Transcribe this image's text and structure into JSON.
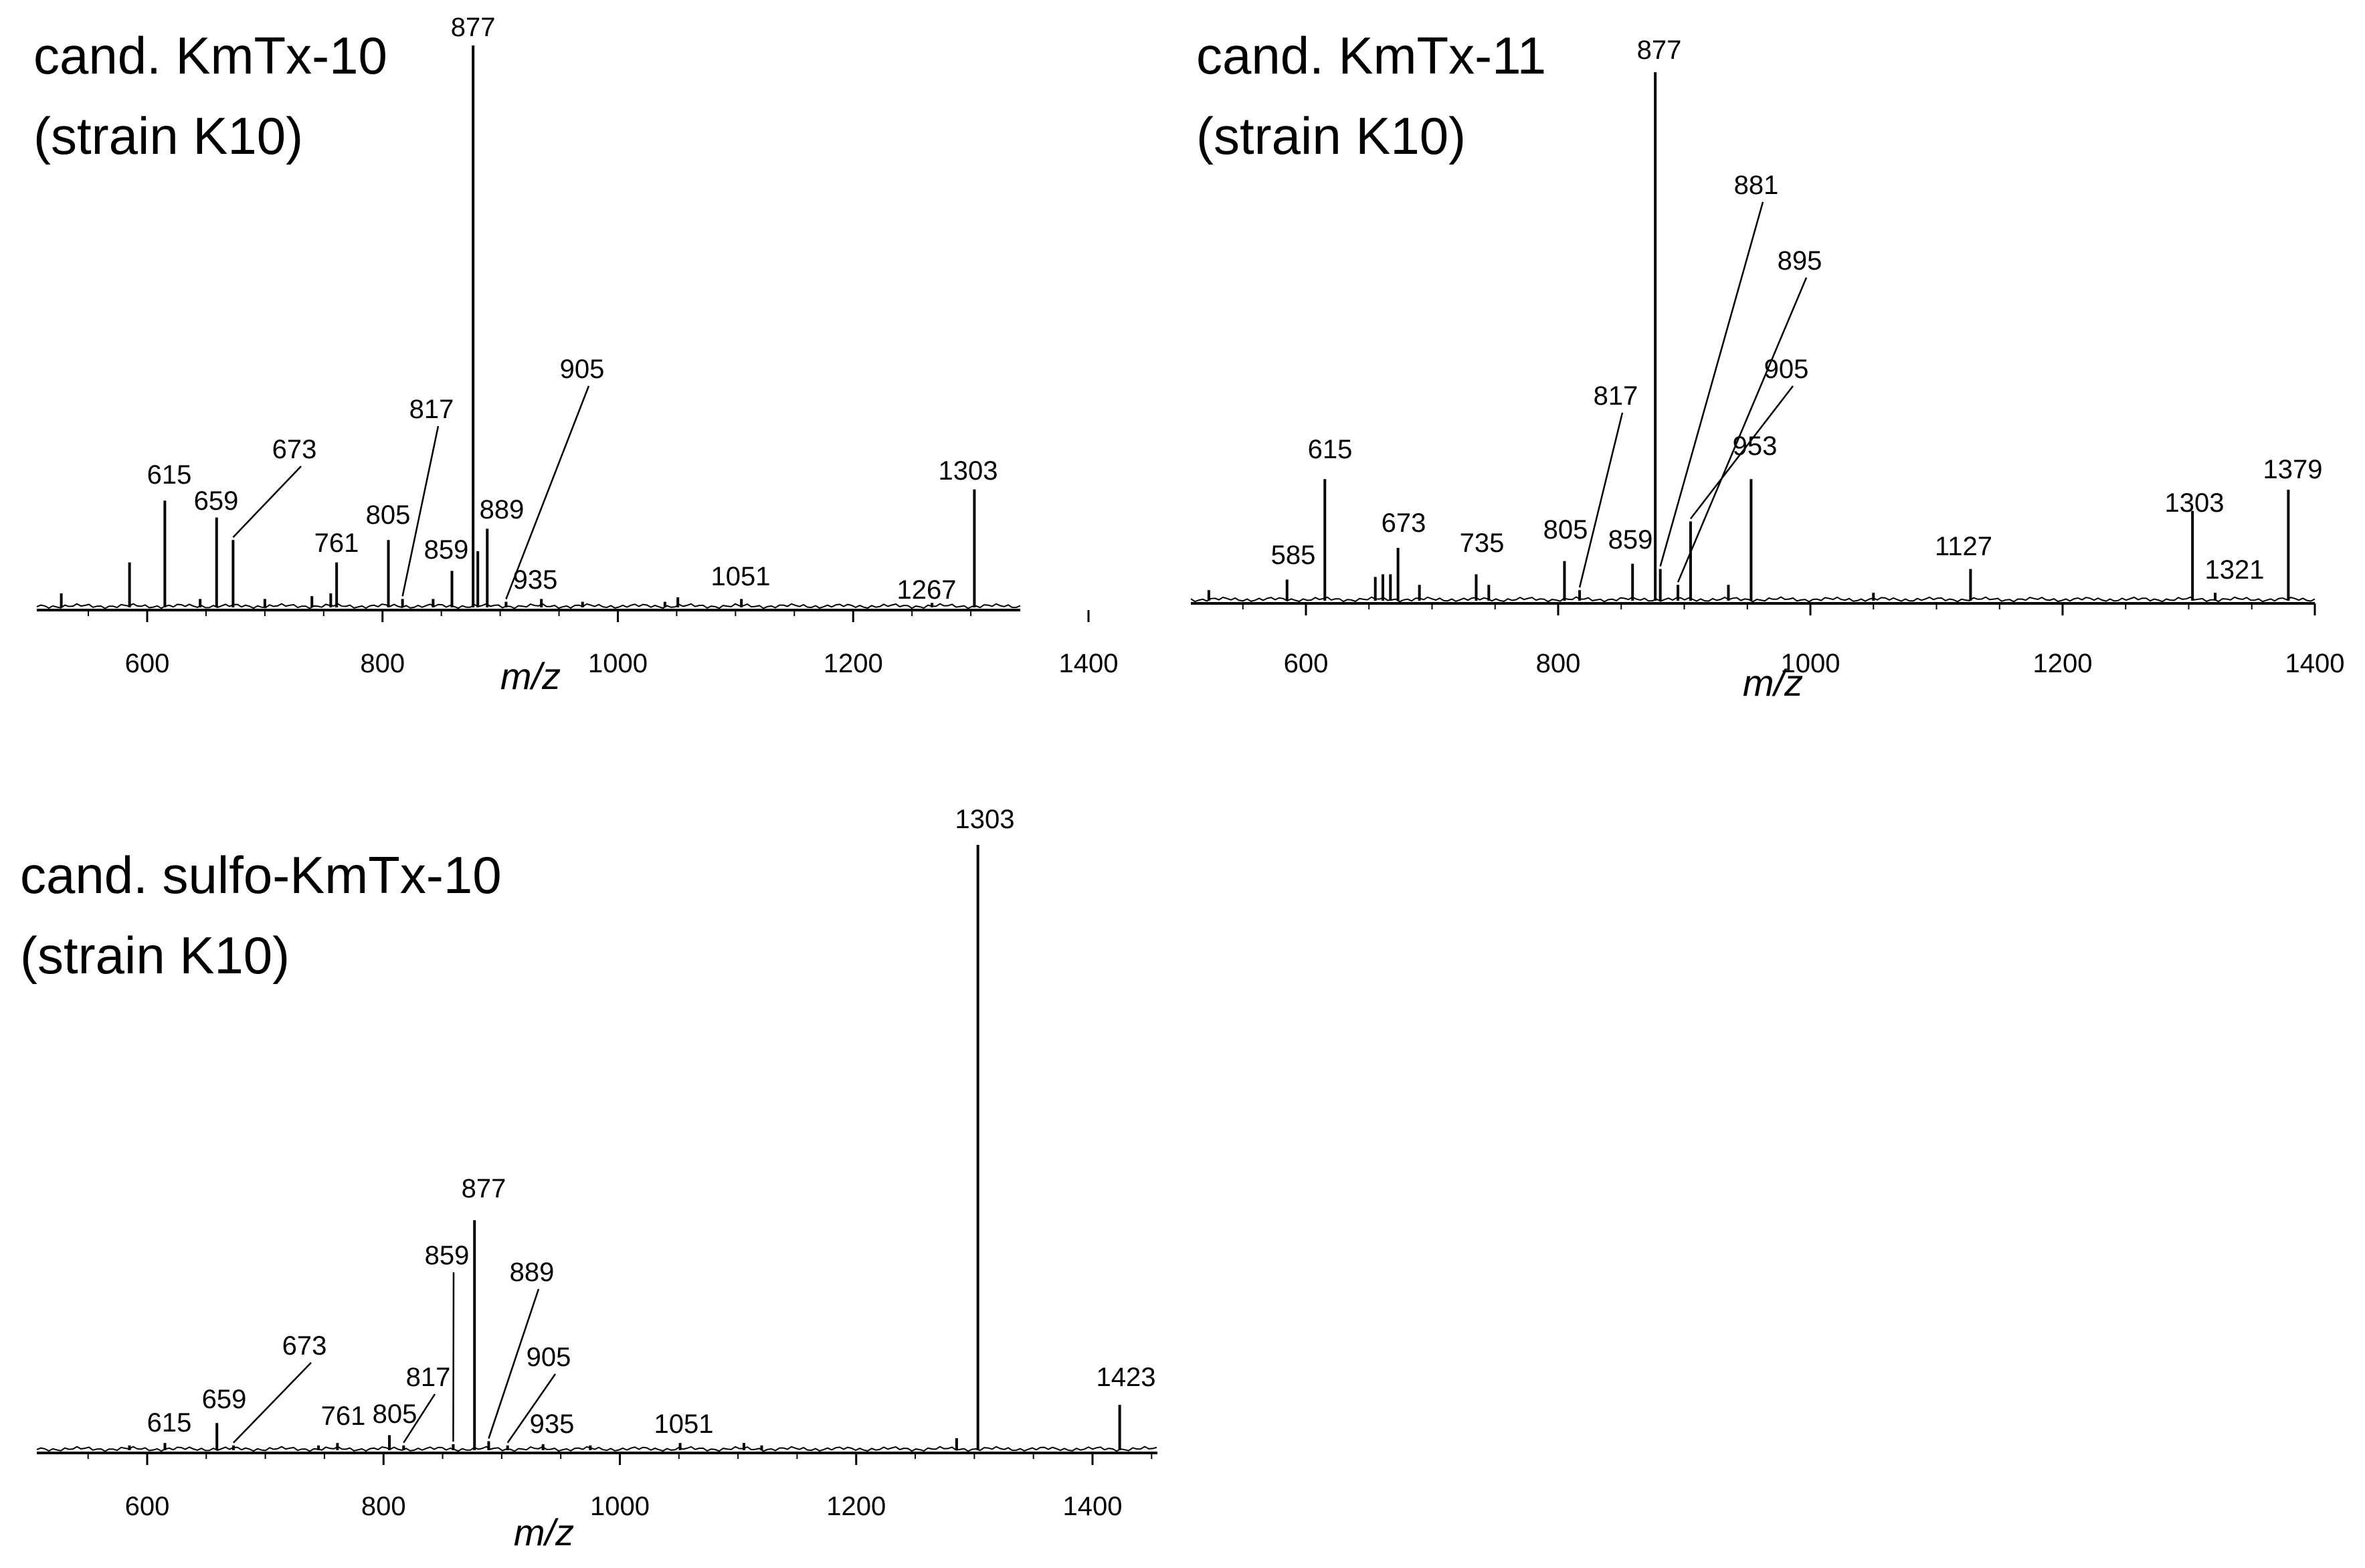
{
  "chart_data": [
    {
      "type": "bar",
      "title": "cand. KmTx-10",
      "subtitle": "(strain K10)",
      "xlabel": "m/z",
      "ylabel": "",
      "xlim": [
        500,
        1350
      ],
      "xticks": [
        600,
        800,
        1000,
        1200,
        1400
      ],
      "ylim": [
        0,
        100
      ],
      "grid": false,
      "peaks": [
        {
          "mz": 527,
          "intensity": 2.5
        },
        {
          "mz": 585,
          "intensity": 8
        },
        {
          "mz": 615,
          "intensity": 19,
          "label": "615"
        },
        {
          "mz": 645,
          "intensity": 1.5
        },
        {
          "mz": 659,
          "intensity": 16,
          "label": "659"
        },
        {
          "mz": 673,
          "intensity": 12,
          "label": "673",
          "leader": true
        },
        {
          "mz": 700,
          "intensity": 1.5
        },
        {
          "mz": 740,
          "intensity": 2
        },
        {
          "mz": 756,
          "intensity": 2.5
        },
        {
          "mz": 761,
          "intensity": 8,
          "label": "761"
        },
        {
          "mz": 805,
          "intensity": 12,
          "label": "805"
        },
        {
          "mz": 817,
          "intensity": 1.5,
          "label": "817",
          "leader": true
        },
        {
          "mz": 843,
          "intensity": 1.5
        },
        {
          "mz": 859,
          "intensity": 6.5,
          "label": "859"
        },
        {
          "mz": 877,
          "intensity": 100,
          "label": "877"
        },
        {
          "mz": 881,
          "intensity": 10
        },
        {
          "mz": 889,
          "intensity": 14,
          "label": "889"
        },
        {
          "mz": 905,
          "intensity": 1,
          "label": "905",
          "leader": true
        },
        {
          "mz": 935,
          "intensity": 1.5,
          "label": "935"
        },
        {
          "mz": 970,
          "intensity": 1
        },
        {
          "mz": 1040,
          "intensity": 1
        },
        {
          "mz": 1051,
          "intensity": 1.8,
          "label": "1051"
        },
        {
          "mz": 1105,
          "intensity": 1.5
        },
        {
          "mz": 1267,
          "intensity": 0.8,
          "label": "1267"
        },
        {
          "mz": 1303,
          "intensity": 21,
          "label": "1303"
        }
      ]
    },
    {
      "type": "bar",
      "title": "cand. KmTx-11",
      "subtitle": "(strain K10)",
      "xlabel": "m/z",
      "ylabel": "",
      "xlim": [
        500,
        1400
      ],
      "xticks": [
        600,
        800,
        1000,
        1200,
        1400
      ],
      "ylim": [
        0,
        100
      ],
      "grid": false,
      "peaks": [
        {
          "mz": 523,
          "intensity": 2
        },
        {
          "mz": 585,
          "intensity": 4,
          "label": "585"
        },
        {
          "mz": 615,
          "intensity": 23,
          "label": "615"
        },
        {
          "mz": 655,
          "intensity": 4.5
        },
        {
          "mz": 661,
          "intensity": 5
        },
        {
          "mz": 667,
          "intensity": 5
        },
        {
          "mz": 673,
          "intensity": 10,
          "label": "673"
        },
        {
          "mz": 690,
          "intensity": 3
        },
        {
          "mz": 735,
          "intensity": 5,
          "label": "735"
        },
        {
          "mz": 745,
          "intensity": 3
        },
        {
          "mz": 805,
          "intensity": 7.5,
          "label": "805"
        },
        {
          "mz": 817,
          "intensity": 2,
          "label": "817",
          "leader": true
        },
        {
          "mz": 859,
          "intensity": 7,
          "label": "859"
        },
        {
          "mz": 877,
          "intensity": 100,
          "label": "877"
        },
        {
          "mz": 881,
          "intensity": 6,
          "label": "881",
          "leader": true
        },
        {
          "mz": 895,
          "intensity": 3,
          "label": "895",
          "leader": true
        },
        {
          "mz": 905,
          "intensity": 15,
          "label": "905",
          "leader": true
        },
        {
          "mz": 935,
          "intensity": 3
        },
        {
          "mz": 953,
          "intensity": 23,
          "label": "953"
        },
        {
          "mz": 1050,
          "intensity": 1.5
        },
        {
          "mz": 1127,
          "intensity": 6,
          "label": "1127"
        },
        {
          "mz": 1303,
          "intensity": 17,
          "label": "1303"
        },
        {
          "mz": 1321,
          "intensity": 1.5,
          "label": "1321"
        },
        {
          "mz": 1379,
          "intensity": 21,
          "label": "1379"
        }
      ]
    },
    {
      "type": "bar",
      "title": "cand. sulfo-KmTx-10",
      "subtitle": "(strain K10)",
      "xlabel": "m/z",
      "ylabel": "",
      "xlim": [
        500,
        1450
      ],
      "xticks": [
        600,
        800,
        1000,
        1200,
        1400
      ],
      "ylim": [
        0,
        100
      ],
      "grid": false,
      "peaks": [
        {
          "mz": 585,
          "intensity": 0.8
        },
        {
          "mz": 615,
          "intensity": 1.2,
          "label": "615"
        },
        {
          "mz": 659,
          "intensity": 4.5,
          "label": "659"
        },
        {
          "mz": 673,
          "intensity": 0.8,
          "label": "673",
          "leader": true
        },
        {
          "mz": 745,
          "intensity": 0.8
        },
        {
          "mz": 761,
          "intensity": 1.2,
          "label": "761"
        },
        {
          "mz": 805,
          "intensity": 2.5,
          "label": "805"
        },
        {
          "mz": 817,
          "intensity": 0.8,
          "label": "817",
          "leader": true
        },
        {
          "mz": 859,
          "intensity": 1,
          "label": "859",
          "leader": true
        },
        {
          "mz": 877,
          "intensity": 38,
          "label": "877"
        },
        {
          "mz": 889,
          "intensity": 1.5,
          "label": "889",
          "leader": true
        },
        {
          "mz": 905,
          "intensity": 0.8,
          "label": "905",
          "leader": true
        },
        {
          "mz": 935,
          "intensity": 1,
          "label": "935"
        },
        {
          "mz": 975,
          "intensity": 0.8
        },
        {
          "mz": 1051,
          "intensity": 1.2,
          "label": "1051"
        },
        {
          "mz": 1105,
          "intensity": 1.2
        },
        {
          "mz": 1120,
          "intensity": 0.8
        },
        {
          "mz": 1285,
          "intensity": 2
        },
        {
          "mz": 1303,
          "intensity": 100,
          "label": "1303"
        },
        {
          "mz": 1423,
          "intensity": 7.5,
          "label": "1423"
        }
      ]
    }
  ]
}
